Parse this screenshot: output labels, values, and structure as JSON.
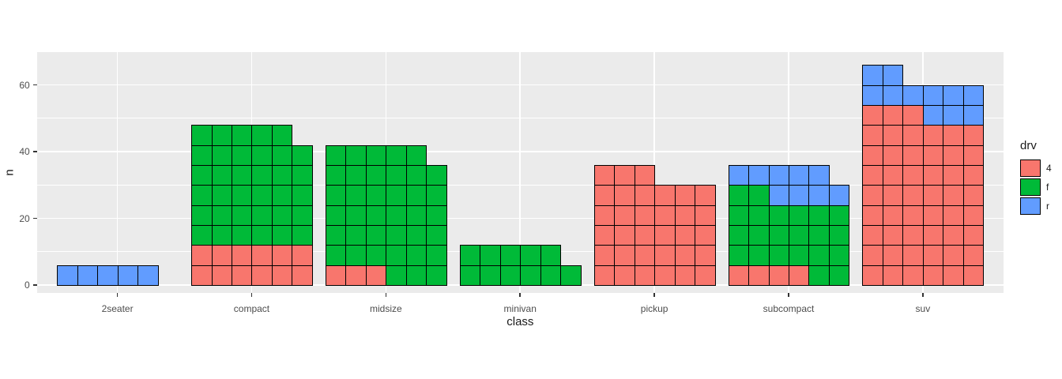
{
  "chart_data": {
    "type": "bar",
    "subtype": "waffle-unit-stacked-bar",
    "title": "",
    "xlabel": "class",
    "ylabel": "n",
    "categories": [
      "2seater",
      "compact",
      "midsize",
      "minivan",
      "pickup",
      "subcompact",
      "suv"
    ],
    "series_order": [
      "4",
      "f",
      "r"
    ],
    "series": [
      {
        "name": "4",
        "values": [
          0,
          12,
          3,
          0,
          33,
          4,
          51
        ]
      },
      {
        "name": "f",
        "values": [
          0,
          35,
          38,
          11,
          0,
          22,
          0
        ]
      },
      {
        "name": "r",
        "values": [
          5,
          0,
          0,
          0,
          0,
          9,
          11
        ]
      }
    ],
    "totals": [
      5,
      47,
      41,
      11,
      33,
      35,
      62
    ],
    "cells_per_row": 6,
    "n_units_per_cell": 6,
    "y_ticks_major": [
      0,
      20,
      40,
      60
    ],
    "y_ticks_minor": [
      10,
      30,
      50
    ],
    "ylim": [
      -2,
      70
    ],
    "grid": "on",
    "legend": {
      "title": "drv",
      "position": "right",
      "entries": [
        {
          "label": "4",
          "color": "#F8766D"
        },
        {
          "label": "f",
          "color": "#00BA38"
        },
        {
          "label": "r",
          "color": "#619CFF"
        }
      ]
    },
    "colors": {
      "4": "#F8766D",
      "f": "#00BA38",
      "r": "#619CFF"
    },
    "panel_background": "#EBEBEB",
    "gridline_color": "#FFFFFF",
    "cell_border_color": "#000000",
    "tick_label_color": "#4D4D4D",
    "axis_title_color": "#1a1a1a"
  }
}
